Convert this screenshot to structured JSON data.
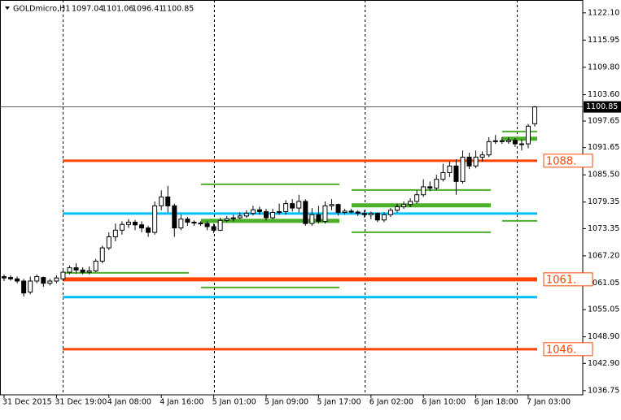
{
  "chart_data": {
    "type": "candlestick",
    "title": "GOLDmicro,H1",
    "categories": [
      "31 Dec 2015",
      null,
      null,
      null,
      null,
      null,
      null,
      null,
      "31 Dec 19:00",
      null,
      null,
      null,
      null,
      null,
      null,
      null,
      "4 Jan 08:00",
      null,
      null,
      null,
      null,
      null,
      null,
      null,
      "4 Jan 16:00",
      null,
      null,
      null,
      null,
      null,
      null,
      null,
      "5 Jan 01:00",
      null,
      null,
      null,
      null,
      null,
      null,
      null,
      "5 Jan 09:00",
      null,
      null,
      null,
      null,
      null,
      null,
      null,
      "5 Jan 17:00",
      null,
      null,
      null,
      null,
      null,
      null,
      null,
      "6 Jan 02:00",
      null,
      null,
      null,
      null,
      null,
      null,
      null,
      "6 Jan 10:00",
      null,
      null,
      null,
      null,
      null,
      null,
      null,
      "6 Jan 18:00",
      null,
      null,
      null,
      null,
      null,
      null,
      null,
      "7 Jan 03:00",
      null
    ],
    "open": [
      1062.5,
      1062.3,
      1062,
      1061.5,
      1059,
      1061.5,
      1062.3,
      1061,
      1061.5,
      1062,
      1063.5,
      1064.5,
      1064,
      1063.5,
      1063.8,
      1066,
      1069,
      1071.5,
      1073,
      1074.3,
      1074.8,
      1074.2,
      1073.5,
      1072.5,
      1078.5,
      1080.5,
      1078.5,
      1073.5,
      1075.5,
      1074.8,
      1074.6,
      1074.5,
      1073.8,
      1073,
      1075.2,
      1075.6,
      1075.8,
      1076.2,
      1076.8,
      1077.6,
      1077.2,
      1075.8,
      1077,
      1077.2,
      1079,
      1078,
      1079.5,
      1074.5,
      1076.5,
      1075,
      1078.5,
      1078.8,
      1077,
      1077.3,
      1077.1,
      1076.8,
      1076.5,
      1076.8,
      1075.3,
      1076.5,
      1077.5,
      1078.3,
      1078.8,
      1079.5,
      1081,
      1082.8,
      1082.5,
      1084.5,
      1086,
      1087.5,
      1084,
      1089.5,
      1087.5,
      1089.5,
      1090,
      1093,
      1093.2,
      1093,
      1093.3,
      1092.5,
      1092.5,
      1097.04
    ],
    "high": [
      1063,
      1062.8,
      1062.5,
      1062,
      1062.5,
      1063,
      1062.5,
      1062,
      1062.8,
      1064,
      1065,
      1065.5,
      1064.6,
      1064.8,
      1066.5,
      1069.5,
      1072.5,
      1074.5,
      1075,
      1075.5,
      1075.3,
      1075,
      1074,
      1079.5,
      1082,
      1083,
      1079,
      1076.5,
      1076,
      1075.2,
      1075,
      1075,
      1074.5,
      1075.8,
      1076.2,
      1076.5,
      1077,
      1077.5,
      1078.5,
      1078.3,
      1077.8,
      1077.8,
      1079,
      1079.8,
      1080,
      1081,
      1080,
      1078,
      1078.5,
      1079.5,
      1080,
      1079,
      1077.8,
      1077.8,
      1077.5,
      1077.5,
      1077.2,
      1077,
      1077,
      1078,
      1079,
      1079.5,
      1080.2,
      1082,
      1084.5,
      1084,
      1085.5,
      1088,
      1088.5,
      1089,
      1091,
      1090.5,
      1091,
      1090.8,
      1094,
      1094.5,
      1094,
      1094,
      1093.8,
      1093.5,
      1097,
      1101.06
    ],
    "low": [
      1061.5,
      1061.6,
      1061,
      1058,
      1058.5,
      1061,
      1060.2,
      1060.5,
      1061,
      1061.5,
      1063,
      1063.2,
      1063,
      1063,
      1063.5,
      1065.5,
      1068.5,
      1070.5,
      1072,
      1073.5,
      1073,
      1072.5,
      1071.5,
      1072,
      1077.5,
      1077,
      1071.5,
      1073,
      1074,
      1074,
      1074,
      1073,
      1072.3,
      1072.8,
      1074.8,
      1075,
      1075.5,
      1075.8,
      1076.3,
      1076.5,
      1075.2,
      1075.5,
      1076.5,
      1076.5,
      1077.2,
      1077,
      1074,
      1074,
      1074.5,
      1074.5,
      1077.5,
      1076.3,
      1076.5,
      1076.8,
      1076.2,
      1075.8,
      1075.5,
      1074.8,
      1074.8,
      1076,
      1077,
      1077.8,
      1078.2,
      1079,
      1080.5,
      1081.8,
      1082,
      1084,
      1085,
      1081,
      1083.5,
      1086.8,
      1087,
      1088.5,
      1089.5,
      1092.5,
      1092.5,
      1092.5,
      1091.8,
      1091,
      1091.5,
      1096.41
    ],
    "close": [
      1062.2,
      1062,
      1061.5,
      1058.8,
      1061.5,
      1062.5,
      1061,
      1061.5,
      1062.2,
      1063.5,
      1064.5,
      1064,
      1063.5,
      1063.8,
      1066,
      1069,
      1071.5,
      1073,
      1074.3,
      1074.8,
      1074.2,
      1073.5,
      1072.5,
      1078.5,
      1080.5,
      1078.5,
      1073.5,
      1075.5,
      1074.8,
      1074.6,
      1074.5,
      1073.8,
      1073,
      1075.2,
      1075.6,
      1075.8,
      1076.2,
      1076.8,
      1077.6,
      1077.2,
      1075.8,
      1077,
      1077.2,
      1079,
      1078,
      1079.5,
      1074.5,
      1076.5,
      1075,
      1078.5,
      1078.8,
      1077,
      1077.3,
      1077.1,
      1076.8,
      1076.5,
      1076.8,
      1075.3,
      1076.5,
      1077.5,
      1078.3,
      1078.8,
      1079.5,
      1081,
      1082.8,
      1082.5,
      1084.5,
      1086,
      1087.5,
      1084,
      1089.5,
      1087.5,
      1089.5,
      1090,
      1093,
      1093.2,
      1093,
      1093.3,
      1092.5,
      1092.5,
      1096.5,
      1100.85
    ],
    "ylim": [
      1035.8,
      1125.0
    ],
    "yticks": [
      {
        "value": 1122.1,
        "label": "1122.10"
      },
      1115.95,
      {
        "value": 1109.8,
        "label": "1109.80"
      },
      {
        "value": 1103.6,
        "label": "1103.60"
      },
      1097.65,
      1091.65,
      {
        "value": 1085.5,
        "label": "1085.50"
      },
      1079.35,
      1073.35,
      {
        "value": 1067.2,
        "label": "1067.20"
      },
      1061.05,
      1055.05,
      {
        "value": 1048.9,
        "label": "1048.90"
      },
      {
        "value": 1042.9,
        "label": "1042.90"
      },
      1036.75
    ],
    "levels": [
      {
        "value": 1088.69,
        "label": "1088.",
        "color": "#ff4500"
      },
      {
        "value": 1061.89,
        "label": "1061.",
        "color": "#ff4500"
      },
      {
        "value": 1046.11,
        "label": "1046.",
        "color": "#ff4500"
      },
      {
        "value": 1076.76,
        "color": "#00bfff"
      },
      {
        "value": 1057.86,
        "color": "#00bfff"
      },
      {
        "value": 1063.36,
        "color": "#4caf2a"
      },
      {
        "value": 1060.06,
        "color": "#4caf2a"
      },
      {
        "value": 1083.37,
        "color": "#4caf2a"
      },
      {
        "value": 1075.11,
        "color": "#4caf2a"
      },
      {
        "value": 1082.08,
        "color": "#4caf2a"
      },
      {
        "value": 1078.6,
        "color": "#4caf2a"
      },
      {
        "value": 1072.54,
        "color": "#4caf2a"
      },
      {
        "value": 1095.3,
        "color": "#4caf2a"
      },
      {
        "value": 1093.65,
        "color": "#4caf2a"
      },
      {
        "value": 1075.11,
        "color": "#4caf2a"
      }
    ]
  }
}
